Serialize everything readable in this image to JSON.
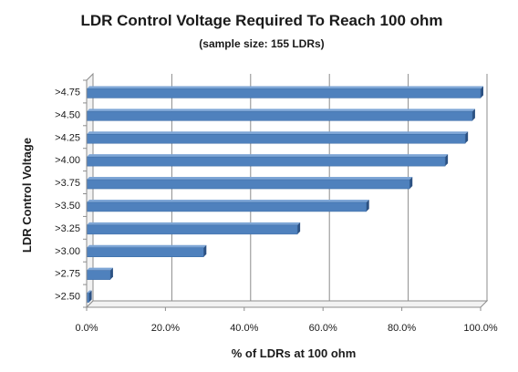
{
  "chart_data": {
    "type": "bar",
    "orientation": "horizontal",
    "title": "LDR Control  Voltage  Required To Reach 100 ohm",
    "subtitle": "(sample size: 155 LDRs)",
    "xlabel": "% of LDRs at 100 ohm",
    "ylabel": "LDR Control Voltage",
    "categories": [
      ">2.50",
      ">2.75",
      ">3.00",
      ">3.25",
      ">3.50",
      ">3.75",
      ">4.00",
      ">4.25",
      ">4.50",
      ">4.75"
    ],
    "values": [
      0.6,
      6.0,
      29.7,
      53.5,
      71.0,
      82.0,
      91.0,
      96.1,
      97.9,
      100.0
    ],
    "x_ticks": [
      "0.0%",
      "20.0%",
      "40.0%",
      "60.0%",
      "80.0%",
      "100.0%"
    ],
    "xlim": [
      0,
      100
    ],
    "grid": "vertical major gridlines",
    "legend": "none",
    "bar_color": "#4f81bd",
    "bar_top_color": "#7ea6d6",
    "bar_side_color": "#2c5182"
  }
}
